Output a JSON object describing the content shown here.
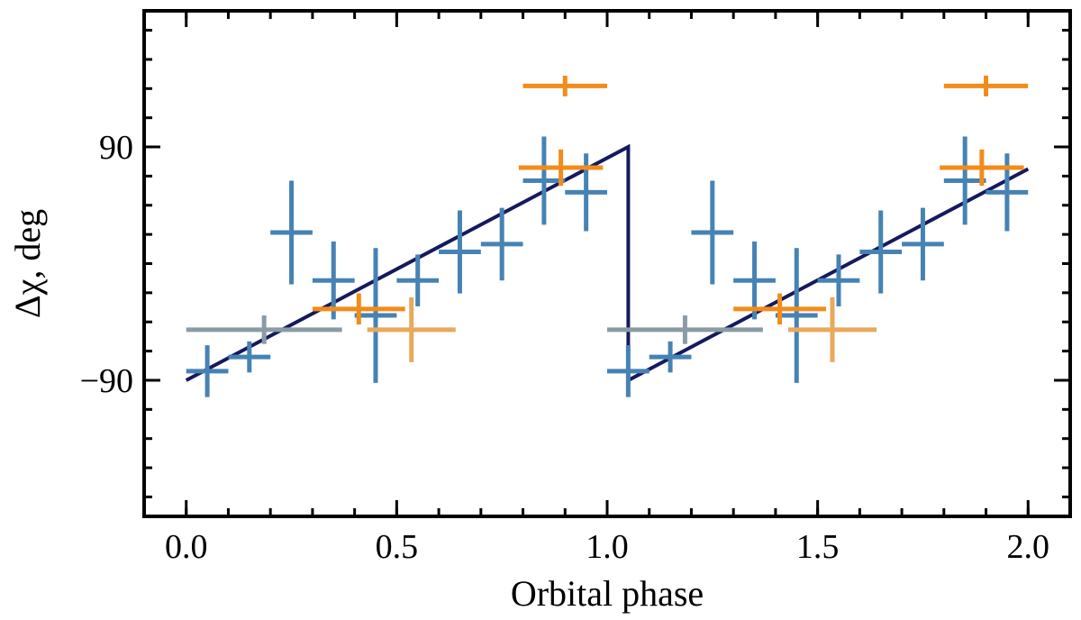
{
  "chart_data": {
    "type": "scatter",
    "xlabel": "Orbital phase",
    "ylabel": "Δχ, deg",
    "xlim": [
      -0.1,
      2.1
    ],
    "ylim": [
      -195,
      195
    ],
    "x_ticks": [
      {
        "value": 0.0,
        "label": "0.0"
      },
      {
        "value": 0.5,
        "label": "0.5"
      },
      {
        "value": 1.0,
        "label": "1.0"
      },
      {
        "value": 1.5,
        "label": "1.5"
      },
      {
        "value": 2.0,
        "label": "2.0"
      }
    ],
    "y_ticks": [
      {
        "value": 90,
        "label": "90"
      },
      {
        "value": -90,
        "label": "−90"
      }
    ],
    "x_minor_step": 0.1,
    "y_minor_step": 22.5,
    "series": [
      {
        "name": "blue points",
        "color": "#4682b4",
        "points": [
          {
            "x": 0.05,
            "y": -83,
            "xerr": 0.05,
            "yerr": 20
          },
          {
            "x": 0.15,
            "y": -72,
            "xerr": 0.05,
            "yerr": 12
          },
          {
            "x": 0.25,
            "y": 24,
            "xerr": 0.05,
            "yerr": 40
          },
          {
            "x": 0.35,
            "y": -13,
            "xerr": 0.05,
            "yerr": 30
          },
          {
            "x": 0.45,
            "y": -40,
            "xerr": 0.05,
            "yerr": 52
          },
          {
            "x": 0.55,
            "y": -13,
            "xerr": 0.05,
            "yerr": 20
          },
          {
            "x": 0.65,
            "y": 9,
            "xerr": 0.05,
            "yerr": 32
          },
          {
            "x": 0.75,
            "y": 15,
            "xerr": 0.05,
            "yerr": 28
          },
          {
            "x": 0.85,
            "y": 64,
            "xerr": 0.05,
            "yerr": 34
          },
          {
            "x": 0.95,
            "y": 55,
            "xerr": 0.05,
            "yerr": 30
          },
          {
            "x": 1.05,
            "y": -83,
            "xerr": 0.05,
            "yerr": 20
          },
          {
            "x": 1.15,
            "y": -72,
            "xerr": 0.05,
            "yerr": 12
          },
          {
            "x": 1.25,
            "y": 24,
            "xerr": 0.05,
            "yerr": 40
          },
          {
            "x": 1.35,
            "y": -13,
            "xerr": 0.05,
            "yerr": 30
          },
          {
            "x": 1.45,
            "y": -40,
            "xerr": 0.05,
            "yerr": 52
          },
          {
            "x": 1.55,
            "y": -13,
            "xerr": 0.05,
            "yerr": 20
          },
          {
            "x": 1.65,
            "y": 9,
            "xerr": 0.05,
            "yerr": 32
          },
          {
            "x": 1.75,
            "y": 15,
            "xerr": 0.05,
            "yerr": 28
          },
          {
            "x": 1.85,
            "y": 64,
            "xerr": 0.05,
            "yerr": 34
          },
          {
            "x": 1.95,
            "y": 55,
            "xerr": 0.05,
            "yerr": 30
          }
        ]
      },
      {
        "name": "orange points",
        "color": "#f28c1a",
        "points": [
          {
            "x": 0.9,
            "y": 137,
            "xerr": 0.1,
            "yerr": 8
          },
          {
            "x": 0.89,
            "y": 74,
            "xerr": 0.1,
            "yerr": 14
          },
          {
            "x": 0.41,
            "y": -35,
            "xerr": 0.11,
            "yerr": 12
          },
          {
            "x": 1.9,
            "y": 137,
            "xerr": 0.1,
            "yerr": 8
          },
          {
            "x": 1.89,
            "y": 74,
            "xerr": 0.1,
            "yerr": 14
          },
          {
            "x": 1.41,
            "y": -35,
            "xerr": 0.11,
            "yerr": 12
          }
        ]
      },
      {
        "name": "light orange points",
        "color": "#e8a95a",
        "points": [
          {
            "x": 0.535,
            "y": -51,
            "xerr": 0.105,
            "yerr": 25
          },
          {
            "x": 1.535,
            "y": -51,
            "xerr": 0.105,
            "yerr": 25
          }
        ]
      },
      {
        "name": "gray points",
        "color": "#8a9ba6",
        "points": [
          {
            "x": 0.185,
            "y": -51,
            "xerr": 0.185,
            "yerr": 11
          },
          {
            "x": 1.185,
            "y": -51,
            "xerr": 0.185,
            "yerr": 11
          }
        ]
      }
    ],
    "model_line": {
      "color": "#151a5e",
      "points": [
        [
          0.0,
          -90
        ],
        [
          1.05,
          90
        ],
        [
          1.05,
          -90
        ],
        [
          2.0,
          73
        ]
      ]
    }
  }
}
